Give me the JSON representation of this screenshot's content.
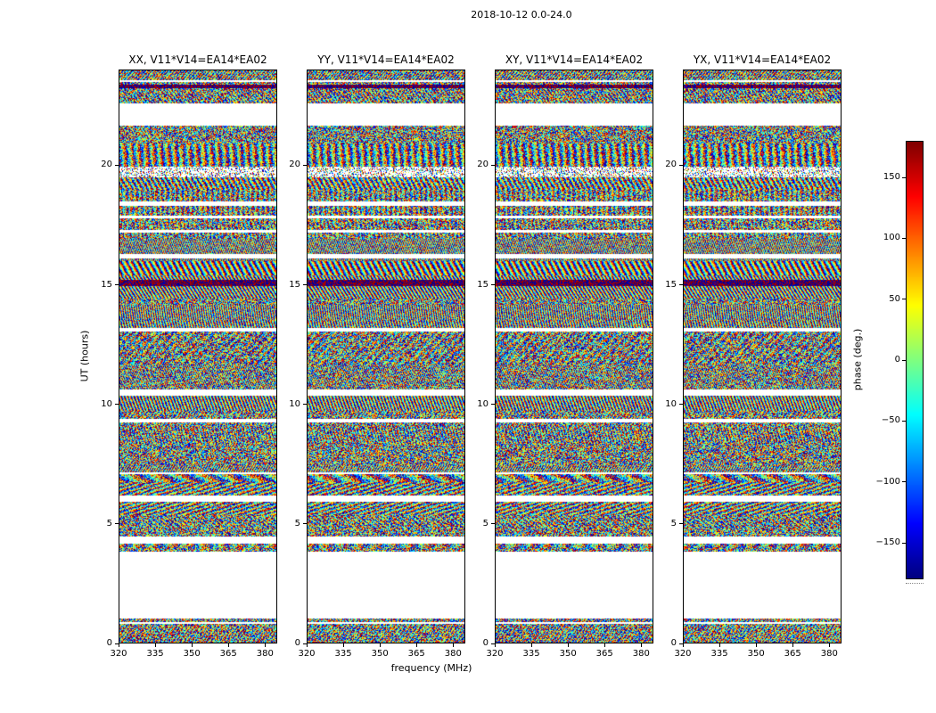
{
  "figure": {
    "title": "2018-10-12 0.0-24.0",
    "xlabel": "frequency (MHz)",
    "ylabel": "UT (hours)"
  },
  "colorbar": {
    "label": "phase (deg.)"
  },
  "chart_data": {
    "type": "heatmap",
    "title": "2018-10-12 0.0-24.0",
    "xlabel": "frequency (MHz)",
    "ylabel": "UT (hours)",
    "x_range": [
      320,
      385
    ],
    "x_ticks": [
      320,
      335,
      350,
      365,
      380
    ],
    "y_range": [
      0,
      24
    ],
    "y_ticks": [
      0,
      5,
      10,
      15,
      20
    ],
    "value_label": "phase (deg.)",
    "value_range": [
      -180,
      180
    ],
    "colorbar_ticks": [
      150,
      100,
      50,
      0,
      -50,
      -100,
      -150
    ],
    "colormap": "jet",
    "grid": false,
    "legend": "none",
    "panels": [
      {
        "label": "XX",
        "title": "XX, V11*V14=EA14*EA02"
      },
      {
        "label": "YY",
        "title": "YY, V11*V14=EA14*EA02"
      },
      {
        "label": "XY",
        "title": "XY, V11*V14=EA14*EA02"
      },
      {
        "label": "YX",
        "title": "YX, V11*V14=EA14*EA02"
      }
    ],
    "data_description": "Interferometric visibility phase (random fringe noise, jet colormap) vs frequency (MHz, x) and UT time (hours, y) for baseline V11*V14=EA14*EA02; white horizontal bands mark times with no data.",
    "gaps_ut": [
      [
        0.78,
        0.85
      ],
      [
        1.0,
        3.8
      ],
      [
        4.15,
        4.45
      ],
      [
        5.9,
        6.15
      ],
      [
        7.05,
        7.15
      ],
      [
        9.25,
        9.4
      ],
      [
        10.35,
        10.6
      ],
      [
        13.05,
        13.2
      ],
      [
        16.1,
        16.3
      ],
      [
        17.2,
        17.3
      ],
      [
        17.8,
        17.9
      ],
      [
        18.3,
        18.5
      ],
      [
        21.7,
        22.6
      ],
      [
        23.5,
        23.6
      ]
    ],
    "dark_bands_ut": [
      [
        14.95,
        15.2
      ],
      [
        23.25,
        23.4
      ]
    ]
  }
}
